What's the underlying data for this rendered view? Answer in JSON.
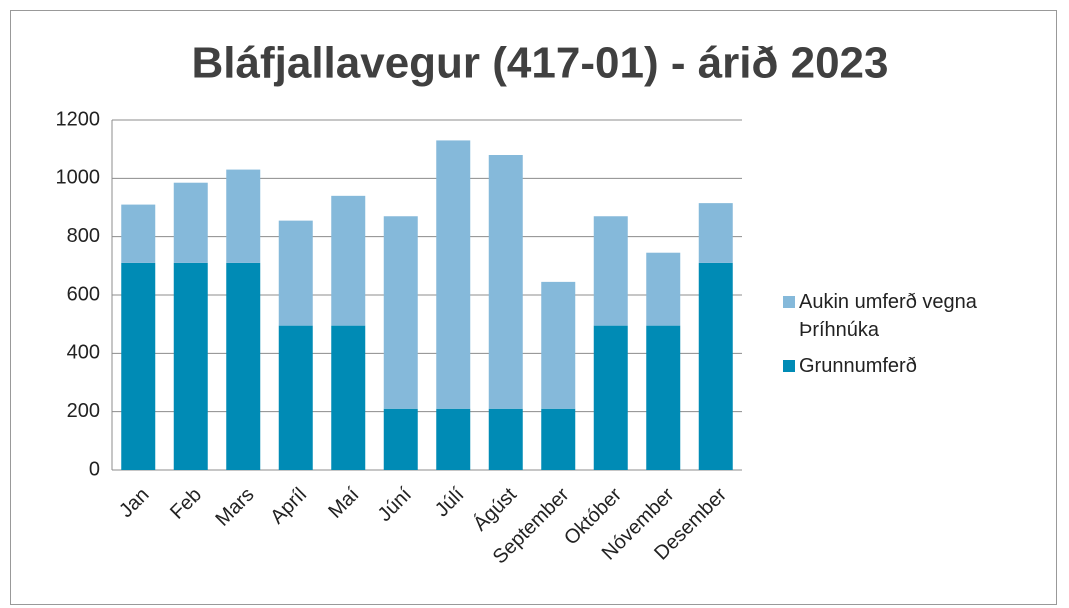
{
  "chart_data": {
    "type": "stacked_bar",
    "title": "Bláfjallavegur (417-01) - árið 2023",
    "categories": [
      "Jan",
      "Feb",
      "Mars",
      "Apríl",
      "Maí",
      "Júní",
      "Júlí",
      "Ágúst",
      "September",
      "Október",
      "Nóvember",
      "Desember"
    ],
    "series": [
      {
        "name": "Grunnumferð",
        "color": "#008bb5",
        "values": [
          710,
          710,
          710,
          495,
          495,
          210,
          210,
          210,
          210,
          495,
          495,
          710
        ]
      },
      {
        "name": "Aukin umferð vegna Þríhnúka",
        "color": "#85b9da",
        "values": [
          200,
          275,
          320,
          360,
          445,
          660,
          920,
          870,
          435,
          375,
          250,
          205
        ]
      }
    ],
    "ylim": [
      0,
      1200
    ],
    "yticks": [
      0,
      200,
      400,
      600,
      800,
      1000,
      1200
    ],
    "grid": true
  }
}
